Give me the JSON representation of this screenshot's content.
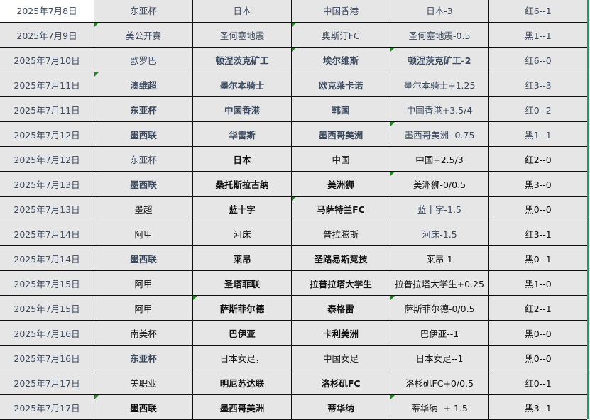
{
  "selected_cell": "0.0",
  "accent_color": "#1f9a6a",
  "rows": [
    {
      "cells": [
        {
          "t": "2025年7月8日"
        },
        {
          "t": "东亚杯"
        },
        {
          "t": "日本"
        },
        {
          "t": "中国香港"
        },
        {
          "t": "日本-3"
        },
        {
          "t": "红6--1"
        }
      ]
    },
    {
      "cells": [
        {
          "t": "2025年7月9日"
        },
        {
          "t": "美公开赛",
          "n": 1
        },
        {
          "t": "圣何塞地震"
        },
        {
          "t": "奥斯汀FC",
          "n": 1
        },
        {
          "t": "圣何塞地震-0.5"
        },
        {
          "t": "黑1--1"
        }
      ]
    },
    {
      "cells": [
        {
          "t": "2025年7月10日"
        },
        {
          "t": "欧罗巴"
        },
        {
          "t": "顿涅茨克矿工",
          "b": 1
        },
        {
          "t": "埃尔维斯",
          "b": 1,
          "n": 1
        },
        {
          "t": "顿涅茨克矿工-2",
          "b": 1,
          "n": 1
        },
        {
          "t": "红6--0"
        }
      ]
    },
    {
      "cells": [
        {
          "t": "2025年7月11日"
        },
        {
          "t": "澳维超",
          "b": 1,
          "n": 1
        },
        {
          "t": "墨尔本骑士",
          "b": 1
        },
        {
          "t": "欧克莱卡诺",
          "b": 1
        },
        {
          "t": "墨尔本骑士+1.25"
        },
        {
          "t": "红3--3"
        }
      ]
    },
    {
      "cells": [
        {
          "t": "2025年7月11日"
        },
        {
          "t": "东亚杯",
          "b": 1
        },
        {
          "t": "中国香港",
          "b": 1
        },
        {
          "t": "韩国",
          "b": 1
        },
        {
          "t": "中国香港+3.5/4"
        },
        {
          "t": "红0--2"
        }
      ]
    },
    {
      "cells": [
        {
          "t": "2025年7月12日"
        },
        {
          "t": "墨西联",
          "b": 1
        },
        {
          "t": "华雷斯",
          "b": 1
        },
        {
          "t": "墨西哥美洲",
          "b": 1
        },
        {
          "t": "墨西哥美洲 -0.75",
          "n": 1
        },
        {
          "t": "黑1--1"
        }
      ]
    },
    {
      "cells": [
        {
          "t": "2025年7月12日"
        },
        {
          "t": "东亚杯"
        },
        {
          "t": "日本",
          "b": 1,
          "k": 1
        },
        {
          "t": "中国",
          "k": 1
        },
        {
          "t": "中国+2.5/3",
          "k": 1
        },
        {
          "t": "红2--0",
          "k": 1
        }
      ]
    },
    {
      "cells": [
        {
          "t": "2025年7月13日"
        },
        {
          "t": "墨西联",
          "b": 1
        },
        {
          "t": "桑托斯拉古纳",
          "b": 1,
          "k": 1
        },
        {
          "t": "美洲狮",
          "b": 1,
          "k": 1
        },
        {
          "t": "美洲狮-0/0.5",
          "k": 1,
          "n": 1
        },
        {
          "t": "黑3--0",
          "k": 1
        }
      ]
    },
    {
      "cells": [
        {
          "t": "2025年7月13日"
        },
        {
          "t": "墨超",
          "k": 1
        },
        {
          "t": "蓝十字",
          "b": 1,
          "k": 1
        },
        {
          "t": "马萨特兰FC",
          "b": 1,
          "k": 1,
          "n": 1
        },
        {
          "t": "蓝十字-1.5"
        },
        {
          "t": "黑0--0",
          "k": 1
        }
      ]
    },
    {
      "cells": [
        {
          "t": "2025年7月14日"
        },
        {
          "t": "阿甲",
          "k": 1
        },
        {
          "t": "河床",
          "k": 1
        },
        {
          "t": "普拉腾斯",
          "k": 1
        },
        {
          "t": "河床-1.5"
        },
        {
          "t": "红3--1",
          "k": 1
        }
      ]
    },
    {
      "cells": [
        {
          "t": "2025年7月14日"
        },
        {
          "t": "墨西联",
          "b": 1
        },
        {
          "t": "莱昂",
          "b": 1,
          "k": 1
        },
        {
          "t": "圣路易斯竞技",
          "b": 1,
          "k": 1
        },
        {
          "t": "莱昂-1",
          "k": 1
        },
        {
          "t": "黑0--1",
          "k": 1
        }
      ]
    },
    {
      "cells": [
        {
          "t": "2025年7月15日"
        },
        {
          "t": "阿甲",
          "k": 1
        },
        {
          "t": "圣塔菲联",
          "b": 1,
          "k": 1
        },
        {
          "t": "拉普拉塔大学生",
          "b": 1,
          "k": 1
        },
        {
          "t": "拉普拉塔大学生+0.25",
          "k": 1
        },
        {
          "t": "黑1--0",
          "k": 1
        }
      ]
    },
    {
      "cells": [
        {
          "t": "2025年7月15日"
        },
        {
          "t": "阿甲",
          "k": 1
        },
        {
          "t": "萨斯菲尔德",
          "b": 1,
          "k": 1,
          "n": 1
        },
        {
          "t": "泰格雷",
          "b": 1,
          "k": 1
        },
        {
          "t": "萨斯菲尔德-0/0.5",
          "k": 1,
          "n": 1
        },
        {
          "t": "红2--1",
          "k": 1
        }
      ]
    },
    {
      "cells": [
        {
          "t": "2025年7月16日"
        },
        {
          "t": "南美杯",
          "k": 1
        },
        {
          "t": "巴伊亚",
          "b": 1,
          "k": 1
        },
        {
          "t": "卡利美洲",
          "b": 1,
          "k": 1
        },
        {
          "t": "巴伊亚--1",
          "k": 1
        },
        {
          "t": "黑0--0",
          "k": 1
        }
      ]
    },
    {
      "cells": [
        {
          "t": "2025年7月16日"
        },
        {
          "t": "东亚杯",
          "b": 1
        },
        {
          "t": "日本女足，",
          "k": 1
        },
        {
          "t": "中国女足",
          "k": 1
        },
        {
          "t": "日本女足--1",
          "k": 1
        },
        {
          "t": "黑0--0",
          "k": 1
        }
      ]
    },
    {
      "cells": [
        {
          "t": "2025年7月17日"
        },
        {
          "t": "美职业",
          "k": 1
        },
        {
          "t": "明尼苏达联",
          "b": 1,
          "k": 1
        },
        {
          "t": "洛杉矶FC",
          "b": 1,
          "k": 1
        },
        {
          "t": "洛杉矶FC+0/0.5",
          "k": 1
        },
        {
          "t": "红0--1",
          "k": 1
        }
      ]
    },
    {
      "cells": [
        {
          "t": "2025年7月17日"
        },
        {
          "t": "墨西联",
          "b": 1,
          "k": 1,
          "n": 1
        },
        {
          "t": "墨西哥美洲",
          "b": 1,
          "k": 1
        },
        {
          "t": "蒂华纳",
          "b": 1,
          "k": 1
        },
        {
          "t": "蒂华纳  + 1.5",
          "k": 1,
          "n": 1
        },
        {
          "t": "黑3--1",
          "k": 1
        }
      ]
    }
  ]
}
